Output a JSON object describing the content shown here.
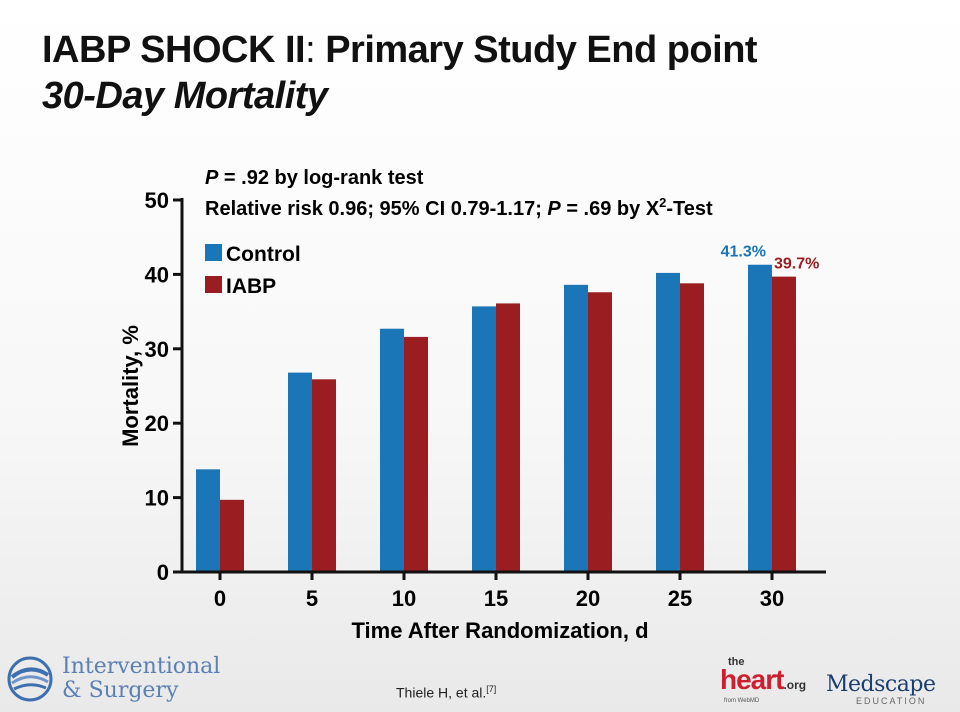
{
  "title": {
    "line1_bold": "IABP SHOCK II",
    "line1_sep": ": ",
    "line1_rest": "Primary Study End point",
    "line2": "30-Day Mortality"
  },
  "annotations": {
    "p_label": "P",
    "logrank_rest": " = .92 by log-rank test",
    "rr_prefix": "Relative risk 0.96; 95% CI 0.79-1.17; ",
    "rr_p": "P",
    "rr_mid": " = .69 by X",
    "rr_sup": "2",
    "rr_suffix": "-Test"
  },
  "colors": {
    "control": "#1a76b7",
    "iabp": "#9a1d22",
    "axis": "#111111"
  },
  "chart_data": {
    "type": "bar",
    "xlabel": "Time After Randomization, d",
    "ylabel": "Mortality, %",
    "ylim": [
      0,
      50
    ],
    "yticks": [
      0,
      10,
      20,
      30,
      40,
      50
    ],
    "legend_position": "top-left",
    "grid": false,
    "categories": [
      "0",
      "5",
      "10",
      "15",
      "20",
      "25",
      "30"
    ],
    "series": [
      {
        "name": "Control",
        "values": [
          13.8,
          26.8,
          32.7,
          35.7,
          38.6,
          40.2,
          41.3
        ]
      },
      {
        "name": "IABP",
        "values": [
          9.7,
          25.9,
          31.6,
          36.1,
          37.6,
          38.8,
          39.7
        ]
      }
    ],
    "data_labels": [
      {
        "series": "Control",
        "category": "30",
        "text": "41.3%"
      },
      {
        "series": "IABP",
        "category": "30",
        "text": "39.7%"
      }
    ]
  },
  "footer": {
    "reference": "Thiele H, et al.",
    "reference_sup": "[7]",
    "logo_left_line1": "Interventional",
    "logo_left_line2": "& Surgery",
    "heart_the": "the",
    "heart_main": "heart",
    "heart_org": ".org",
    "heart_from": "from WebMD",
    "medscape": "Medscape",
    "medscape_sub": "EDUCATION"
  }
}
